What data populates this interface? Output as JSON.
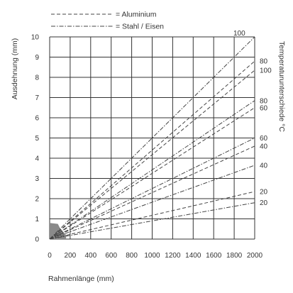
{
  "chart_data": {
    "type": "line",
    "xlabel": "Rahmenlänge (mm)",
    "ylabel": "Ausdehnung (mm)",
    "right_label": "Temperaturunterschiede °C",
    "xlim": [
      0,
      2000
    ],
    "ylim": [
      0,
      10
    ],
    "x_ticks": [
      0,
      200,
      400,
      600,
      800,
      1000,
      1200,
      1400,
      1600,
      1800,
      2000
    ],
    "y_ticks": [
      0,
      1,
      2,
      3,
      4,
      5,
      6,
      7,
      8,
      9,
      10
    ],
    "grid": true,
    "legend_position": "top",
    "legend": [
      {
        "symbol": "- - - - - - - - - -",
        "label": "= Aluminium",
        "style": "dashed"
      },
      {
        "symbol": "-·-·-·-·-·-·-·-",
        "label": "= Stahl / Eisen",
        "style": "dashdot"
      }
    ],
    "series": [
      {
        "label": "100",
        "style": "dashdot",
        "x": [
          0,
          2000
        ],
        "y": [
          0,
          10.0
        ]
      },
      {
        "label": "80",
        "style": "dashed",
        "x": [
          0,
          2000
        ],
        "y": [
          0,
          8.8
        ]
      },
      {
        "label": "100",
        "style": "dashed",
        "x": [
          0,
          2000
        ],
        "y": [
          0,
          8.35
        ]
      },
      {
        "label": "80",
        "style": "dashdot",
        "x": [
          0,
          2000
        ],
        "y": [
          0,
          6.85
        ]
      },
      {
        "label": "60",
        "style": "dashed",
        "x": [
          0,
          2000
        ],
        "y": [
          0,
          6.5
        ]
      },
      {
        "label": "60",
        "style": "dashdot",
        "x": [
          0,
          2000
        ],
        "y": [
          0,
          5.0
        ]
      },
      {
        "label": "40",
        "style": "dashed",
        "x": [
          0,
          2000
        ],
        "y": [
          0,
          4.6
        ]
      },
      {
        "label": "40",
        "style": "dashdot",
        "x": [
          0,
          2000
        ],
        "y": [
          0,
          3.65
        ]
      },
      {
        "label": "20",
        "style": "dashed",
        "x": [
          0,
          2000
        ],
        "y": [
          0,
          2.35
        ]
      },
      {
        "label": "20",
        "style": "dashdot",
        "x": [
          0,
          2000
        ],
        "y": [
          0,
          1.8
        ]
      }
    ],
    "gray_area": {
      "x": [
        0,
        0,
        80,
        100,
        160,
        160
      ],
      "y": [
        0,
        0.8,
        0.75,
        0.55,
        0.2,
        0
      ]
    }
  },
  "colors": {
    "grid": "#333333",
    "lines": "#444444",
    "area": "#8a8a8a"
  }
}
